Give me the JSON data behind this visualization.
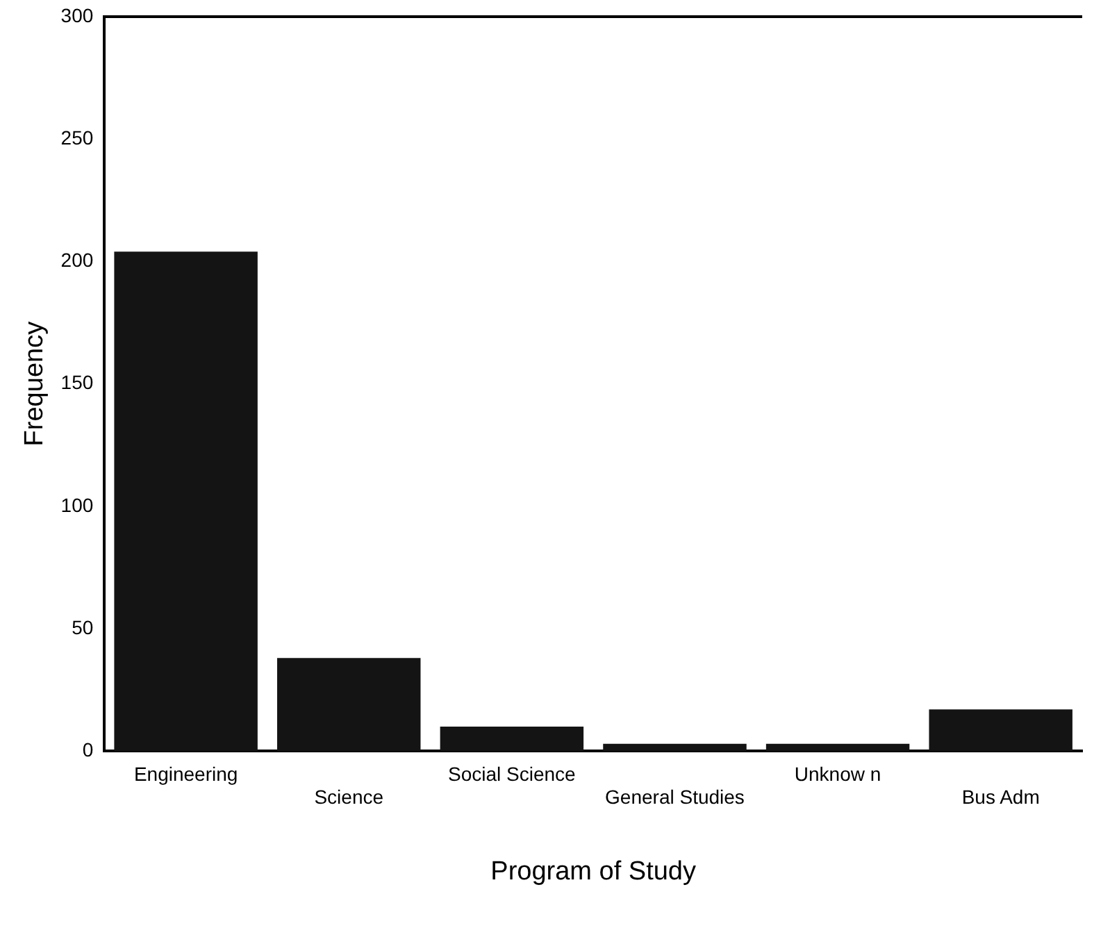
{
  "chart_data": {
    "type": "bar",
    "xlabel": "Program of Study",
    "ylabel": "Frequency",
    "categories": [
      "Engineering",
      "Science",
      "Social Science",
      "General Studies",
      "Unknow n",
      "Bus Adm"
    ],
    "values": [
      204,
      38,
      10,
      3,
      3,
      17
    ],
    "color": "#141414",
    "ylim": [
      0,
      300
    ],
    "yticks": [
      0,
      50,
      100,
      150,
      200,
      250,
      300
    ],
    "grid": false,
    "legend": false
  }
}
